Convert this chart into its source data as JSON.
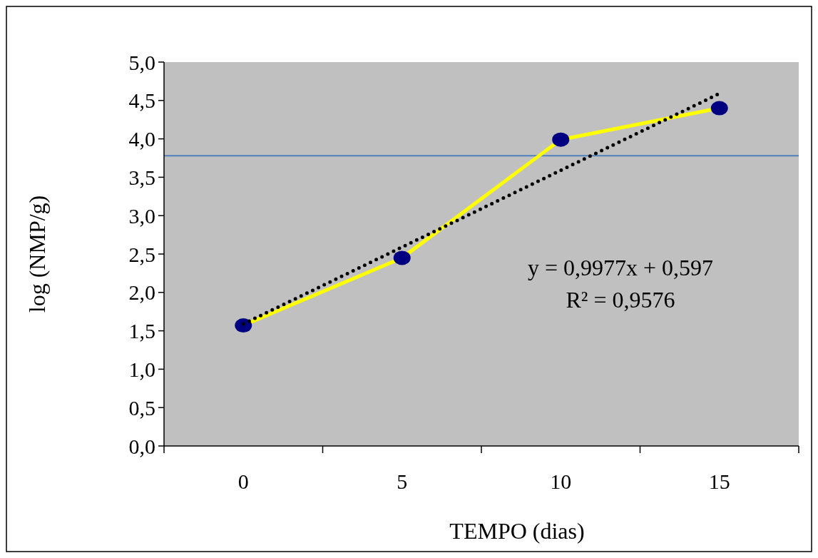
{
  "chart_data": {
    "type": "line",
    "xlabel": "TEMPO (dias)",
    "ylabel": "log (NMP/g)",
    "categories": [
      "0",
      "5",
      "10",
      "15"
    ],
    "series": [
      {
        "color": "#ffff00",
        "colors": [
          "#000080",
          "#000080",
          "#000080",
          "#000080"
        ],
        "marker": "circle",
        "line_style": "solid",
        "values": [
          1.57,
          2.45,
          3.99,
          4.4
        ]
      },
      {
        "color": "#000000",
        "marker": "none",
        "line_style": "dotted",
        "values": [
          1.59,
          2.59,
          3.59,
          4.59
        ]
      }
    ],
    "ylim": [
      0,
      5
    ],
    "yticks": [
      {
        "value": 0,
        "label": "0,0"
      },
      {
        "value": 0.5,
        "label": "0,5"
      },
      {
        "value": 1,
        "label": "1,0"
      },
      {
        "value": 1.5,
        "label": "1,5"
      },
      {
        "value": 2,
        "label": "2,0"
      },
      {
        "value": 2.5,
        "label": "2,5"
      },
      {
        "value": 3,
        "label": "3,0"
      },
      {
        "value": 3.5,
        "label": "3,5"
      },
      {
        "value": 4,
        "label": "4,0"
      },
      {
        "value": 4.5,
        "label": "4,5"
      },
      {
        "value": 5,
        "label": "5,0"
      }
    ],
    "ref_lines": [
      {
        "axis": "y",
        "value": 3.78,
        "color": "#4f81bd"
      }
    ],
    "annotations": [
      "y = 0,9977x + 0,597",
      "R² = 0,9576"
    ],
    "grid": false
  }
}
